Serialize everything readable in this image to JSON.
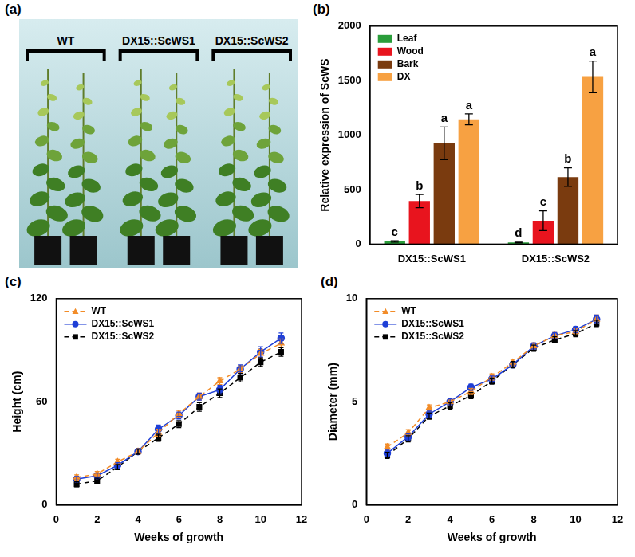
{
  "figure_a": {
    "panel_label": "(a)",
    "labels": [
      "WT",
      "DX15::ScWS1",
      "DX15::ScWS2"
    ]
  },
  "chart_data": [
    {
      "panel_label": "(b)",
      "type": "bar",
      "y_label": "Relative expression of ScWS",
      "categories": [
        "DX15::ScWS1",
        "DX15::ScWS2"
      ],
      "series": [
        {
          "name": "Leaf",
          "color": "#2a9d3a",
          "values": [
            25,
            15
          ],
          "errors": [
            6,
            4
          ],
          "letters": [
            "c",
            "d"
          ]
        },
        {
          "name": "Wood",
          "color": "#e8141e",
          "values": [
            395,
            215
          ],
          "errors": [
            60,
            90
          ],
          "letters": [
            "b",
            "c"
          ]
        },
        {
          "name": "Bark",
          "color": "#7a3b0f",
          "values": [
            925,
            615
          ],
          "errors": [
            150,
            85
          ],
          "letters": [
            "a",
            "b"
          ]
        },
        {
          "name": "DX",
          "color": "#f7a142",
          "values": [
            1145,
            1535
          ],
          "errors": [
            50,
            145
          ],
          "letters": [
            "a",
            "a"
          ]
        }
      ],
      "ylim": [
        0,
        2000
      ],
      "yticks": [
        0,
        500,
        1000,
        1500,
        2000
      ],
      "grid": false,
      "legend": "top-left"
    },
    {
      "panel_label": "(c)",
      "type": "line",
      "x_label": "Weeks of growth",
      "y_label": "Height (cm)",
      "x": [
        1,
        2,
        3,
        4,
        5,
        6,
        7,
        8,
        9,
        10,
        11
      ],
      "series": [
        {
          "name": "WT",
          "color": "#f28c28",
          "marker": "triangle",
          "line_style": "dashed",
          "values": [
            16,
            18,
            25,
            31,
            42,
            53,
            63,
            72,
            79,
            88,
            94
          ],
          "errors": [
            1.5,
            1.5,
            1.5,
            1.5,
            2,
            2,
            2,
            2,
            2,
            2.5,
            2.5
          ]
        },
        {
          "name": "DX15::ScWS1",
          "color": "#1f3fd6",
          "marker": "circle",
          "line_style": "solid",
          "values": [
            15,
            17,
            23,
            31,
            44,
            52,
            63,
            67,
            79,
            89,
            97
          ],
          "errors": [
            1.5,
            1.5,
            1.5,
            1.5,
            2.5,
            2,
            2,
            2.5,
            2.5,
            3,
            3
          ]
        },
        {
          "name": "DX15::ScWS2",
          "color": "#000000",
          "marker": "square",
          "line_style": "dashed",
          "values": [
            12,
            14,
            22,
            31,
            39,
            47,
            57,
            65,
            74,
            83,
            89
          ],
          "errors": [
            1.5,
            1.5,
            1.5,
            1.5,
            2,
            2,
            2.5,
            2.5,
            2.5,
            2.5,
            2.5
          ]
        }
      ],
      "xlim": [
        0,
        12
      ],
      "xticks": [
        0,
        2,
        4,
        6,
        8,
        10,
        12
      ],
      "ylim": [
        0,
        120
      ],
      "yticks": [
        0,
        60,
        120
      ],
      "grid": false,
      "legend": "top-left"
    },
    {
      "panel_label": "(d)",
      "type": "line",
      "x_label": "Weeks of growth",
      "y_label": "Diameter (mm)",
      "x": [
        1,
        2,
        3,
        4,
        5,
        6,
        7,
        8,
        9,
        10,
        11
      ],
      "series": [
        {
          "name": "WT",
          "color": "#f28c28",
          "marker": "triangle",
          "line_style": "dashed",
          "values": [
            2.8,
            3.5,
            4.7,
            5.0,
            5.5,
            6.2,
            6.9,
            7.7,
            8.2,
            8.4,
            9.0
          ],
          "errors": [
            0.15,
            0.15,
            0.15,
            0.15,
            0.15,
            0.15,
            0.15,
            0.15,
            0.15,
            0.15,
            0.2
          ]
        },
        {
          "name": "DX15::ScWS1",
          "color": "#1f3fd6",
          "marker": "circle",
          "line_style": "solid",
          "values": [
            2.5,
            3.3,
            4.4,
            5.0,
            5.7,
            6.1,
            6.8,
            7.7,
            8.2,
            8.5,
            9.0
          ],
          "errors": [
            0.15,
            0.15,
            0.15,
            0.15,
            0.15,
            0.15,
            0.15,
            0.15,
            0.15,
            0.15,
            0.2
          ]
        },
        {
          "name": "DX15::ScWS2",
          "color": "#000000",
          "marker": "square",
          "line_style": "dashed",
          "values": [
            2.4,
            3.2,
            4.3,
            4.8,
            5.3,
            6.0,
            6.8,
            7.6,
            8.0,
            8.3,
            8.8
          ],
          "errors": [
            0.15,
            0.15,
            0.15,
            0.15,
            0.15,
            0.15,
            0.15,
            0.15,
            0.15,
            0.15,
            0.15
          ]
        }
      ],
      "xlim": [
        0,
        12
      ],
      "xticks": [
        0,
        2,
        4,
        6,
        8,
        10,
        12
      ],
      "ylim": [
        0,
        10
      ],
      "yticks": [
        0,
        5,
        10
      ],
      "grid": false,
      "legend": "top-left"
    }
  ]
}
